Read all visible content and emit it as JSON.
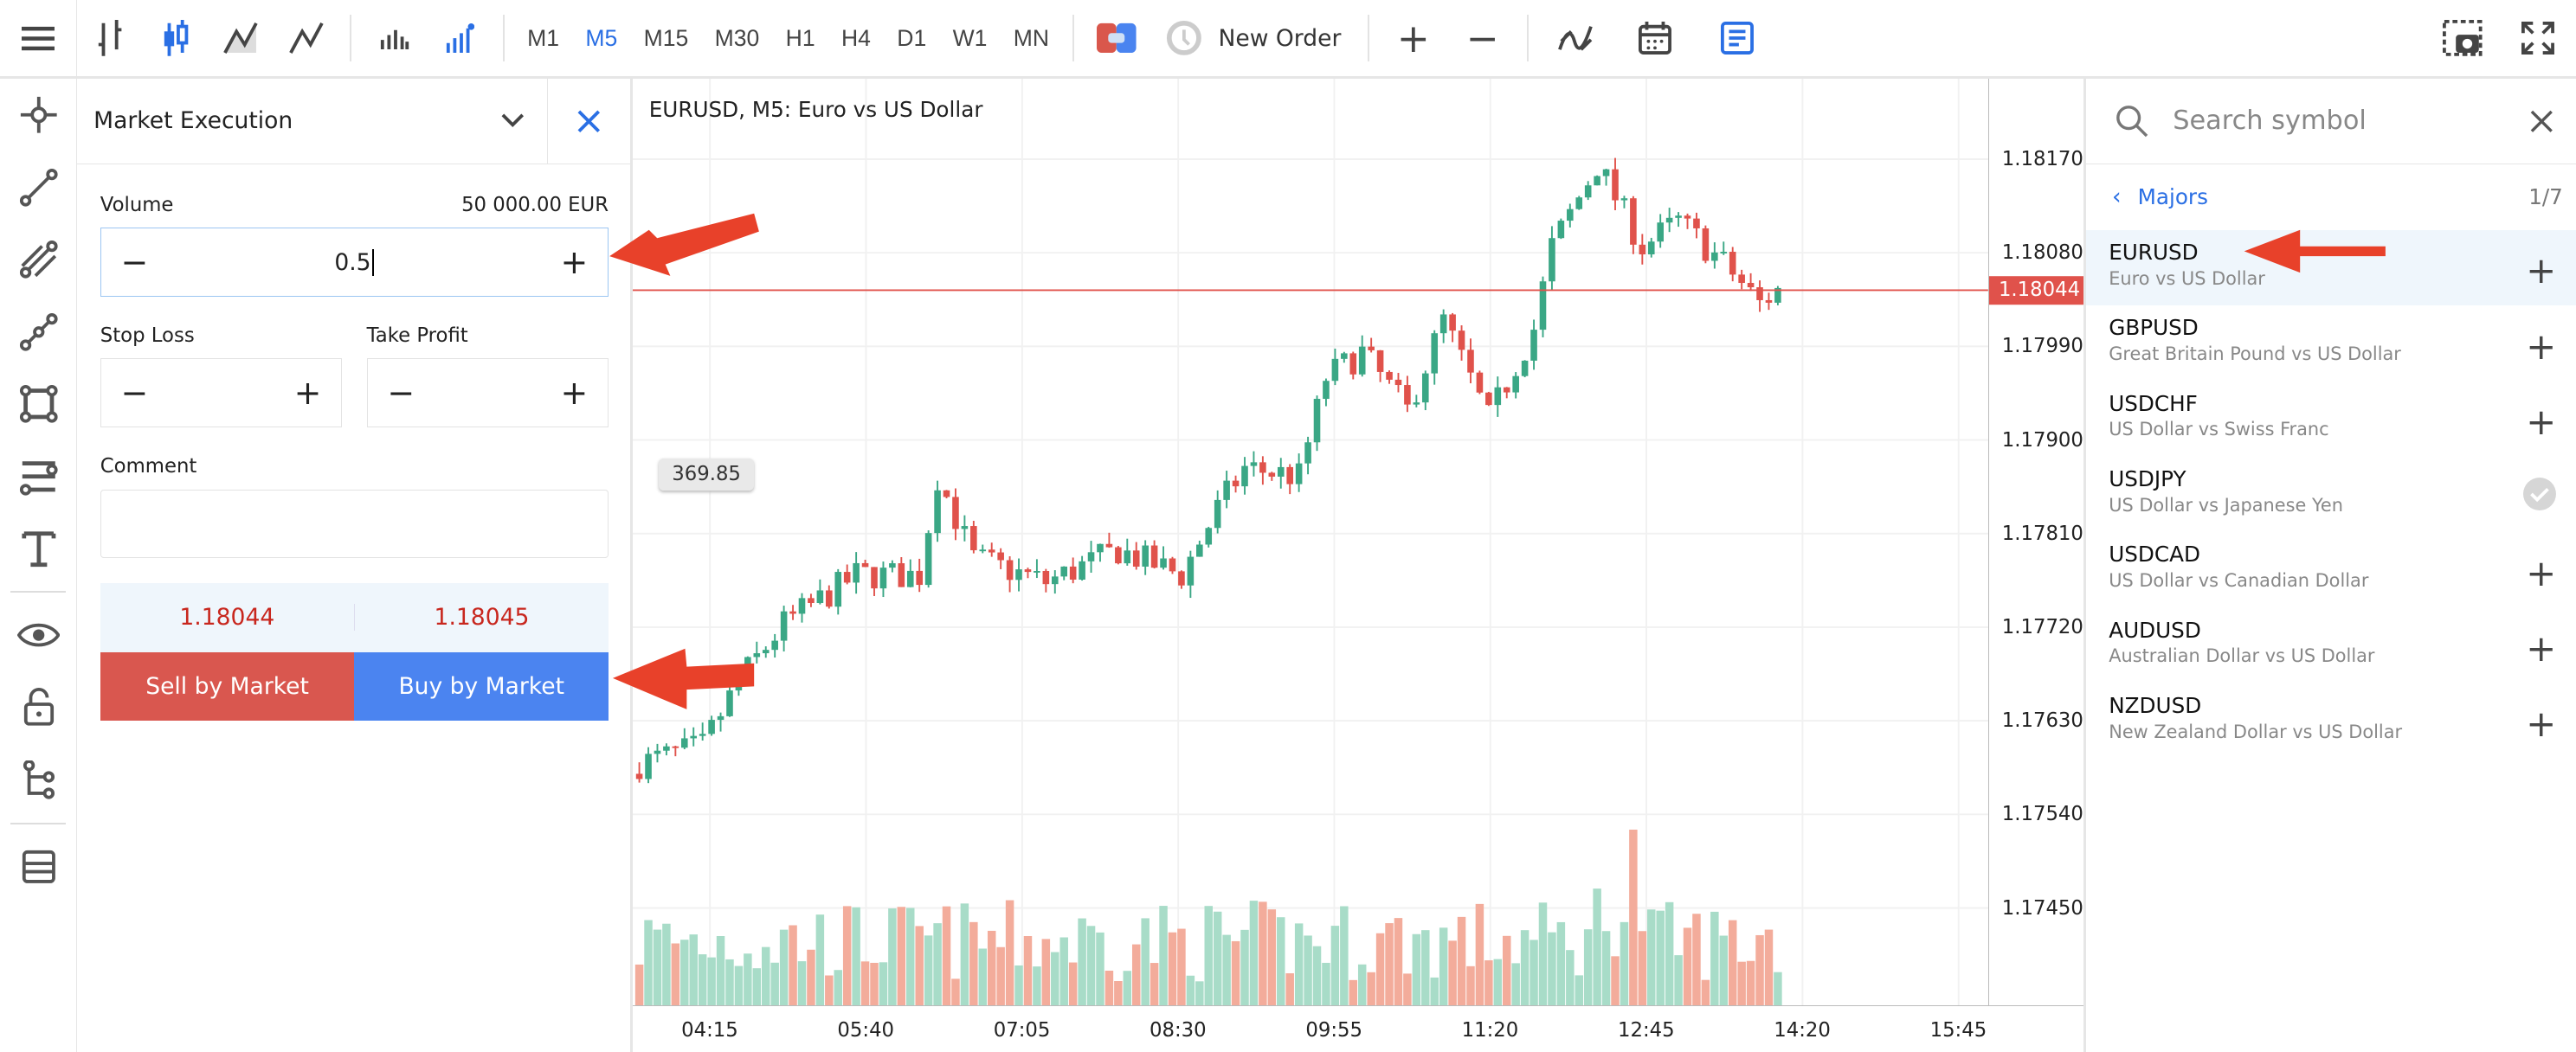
{
  "toolbar": {
    "timeframes": [
      "M1",
      "M5",
      "M15",
      "M30",
      "H1",
      "H4",
      "D1",
      "W1",
      "MN"
    ],
    "active_timeframe": "M5",
    "new_order": "New Order"
  },
  "order": {
    "type": "Market Execution",
    "volume_label": "Volume",
    "volume_amount": "50 000.00 EUR",
    "volume_value": "0.5",
    "stop_loss_label": "Stop Loss",
    "take_profit_label": "Take Profit",
    "comment_label": "Comment",
    "comment_value": "",
    "bid": "1.18044",
    "ask": "1.18045",
    "sell_label": "Sell by Market",
    "buy_label": "Buy by Market"
  },
  "chart": {
    "title": "EURUSD, M5: Euro vs US Dollar",
    "current_price": "1.18044",
    "tooltip": "369.85",
    "price_ticks": [
      "1.18170",
      "1.18080",
      "1.17990",
      "1.17900",
      "1.17810",
      "1.17720",
      "1.17630",
      "1.17540",
      "1.17450"
    ],
    "time_ticks": [
      "04:15",
      "05:40",
      "07:05",
      "08:30",
      "09:55",
      "11:20",
      "12:45",
      "14:20",
      "15:45"
    ]
  },
  "chart_data": {
    "type": "candlestick",
    "symbol": "EURUSD",
    "timeframe": "M5",
    "ylim": [
      1.1738,
      1.1824
    ],
    "close_waypoints": [
      [
        0,
        1.17589
      ],
      [
        7,
        1.17605
      ],
      [
        11,
        1.17668
      ],
      [
        16,
        1.17723
      ],
      [
        24,
        1.1777
      ],
      [
        31,
        1.1777
      ],
      [
        33,
        1.17865
      ],
      [
        37,
        1.17786
      ],
      [
        45,
        1.17763
      ],
      [
        53,
        1.17794
      ],
      [
        60,
        1.1777
      ],
      [
        64,
        1.17834
      ],
      [
        67,
        1.17873
      ],
      [
        73,
        1.17865
      ],
      [
        76,
        1.1796
      ],
      [
        80,
        1.17984
      ],
      [
        85,
        1.17928
      ],
      [
        89,
        1.18015
      ],
      [
        94,
        1.1792
      ],
      [
        99,
        1.18007
      ],
      [
        101,
        1.18086
      ],
      [
        106,
        1.18165
      ],
      [
        111,
        1.18086
      ],
      [
        115,
        1.1811
      ],
      [
        120,
        1.1807
      ],
      [
        124,
        1.18031
      ],
      [
        126,
        1.18044
      ]
    ],
    "colors": {
      "up": "#3aa785",
      "down": "#e0524b",
      "vol_up": "#a8dcc8",
      "vol_down": "#f3ac9b"
    }
  },
  "symbols": {
    "search_placeholder": "Search symbol",
    "group": "Majors",
    "page": "1/7",
    "items": [
      {
        "name": "EURUSD",
        "desc": "Euro vs US Dollar",
        "added": false
      },
      {
        "name": "GBPUSD",
        "desc": "Great Britain Pound vs US Dollar",
        "added": false
      },
      {
        "name": "USDCHF",
        "desc": "US Dollar vs Swiss Franc",
        "added": false
      },
      {
        "name": "USDJPY",
        "desc": "US Dollar vs Japanese Yen",
        "added": true
      },
      {
        "name": "USDCAD",
        "desc": "US Dollar vs Canadian Dollar",
        "added": false
      },
      {
        "name": "AUDUSD",
        "desc": "Australian Dollar vs US Dollar",
        "added": false
      },
      {
        "name": "NZDUSD",
        "desc": "New Zealand Dollar vs US Dollar",
        "added": false
      }
    ]
  }
}
